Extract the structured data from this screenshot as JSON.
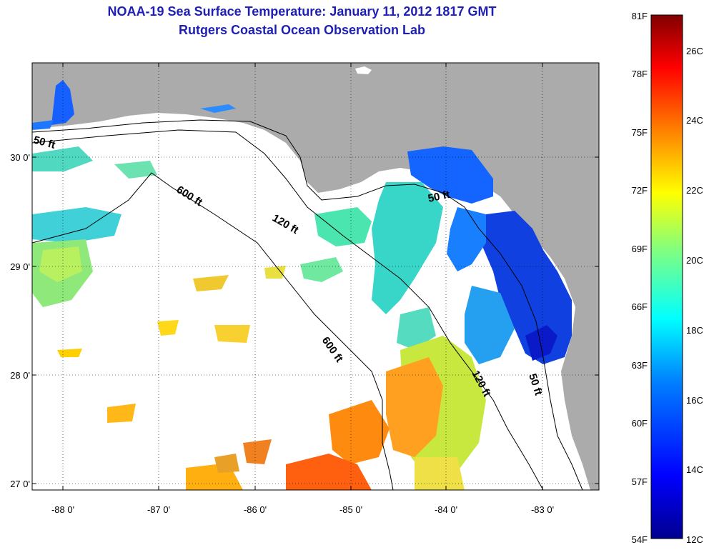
{
  "header": {
    "title_line1": "NOAA-19 Sea Surface Temperature:  January 11, 2012 1817 GMT",
    "title_line2": "Rutgers Coastal Ocean Observation Lab"
  },
  "map": {
    "lon_ticks": [
      "-88 0'",
      "-87 0'",
      "-86 0'",
      "-85 0'",
      "-84 0'",
      "-83 0'"
    ],
    "lat_ticks": [
      "30 0'",
      "29 0'",
      "28 0'",
      "27 0'"
    ],
    "contours": {
      "c50_west": "50 ft",
      "c600_north": "600 ft",
      "c120_north": "120 ft",
      "c50_east": "50 ft",
      "c600_south": "600 ft",
      "c120_south": "120 ft",
      "c50_south": "50 ft"
    },
    "colors": {
      "land": "#ababab",
      "ocean": "#ffffff"
    }
  },
  "colorbar": {
    "f_labels": [
      "81F",
      "78F",
      "75F",
      "72F",
      "69F",
      "66F",
      "63F",
      "60F",
      "57F",
      "54F"
    ],
    "c_labels": [
      "26C",
      "24C",
      "22C",
      "20C",
      "18C",
      "16C",
      "14C",
      "12C"
    ],
    "scale": [
      "#00008f",
      "#0000ff",
      "#0080ff",
      "#00ffff",
      "#80ff80",
      "#ffff00",
      "#ff8000",
      "#ff0000",
      "#800000"
    ]
  }
}
